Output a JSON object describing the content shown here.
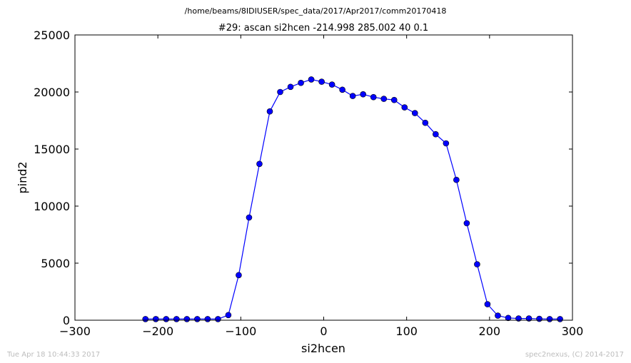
{
  "chart_data": {
    "type": "line",
    "suptitle": "/home/beams/8IDIUSER/spec_data/2017/Apr2017/comm20170418",
    "title": "#29: ascan  si2hcen -214.998 285.002  40 0.1",
    "xlabel": "si2hcen",
    "ylabel": "pind2",
    "xlim": [
      -300,
      300
    ],
    "ylim": [
      0,
      25000
    ],
    "xticks": [
      -300,
      -200,
      -100,
      0,
      100,
      200,
      300
    ],
    "yticks": [
      0,
      5000,
      10000,
      15000,
      20000,
      25000
    ],
    "grid": false,
    "legend": "none",
    "series": [
      {
        "color": "#0000ff",
        "marker": "circle",
        "x": [
          -214.998,
          -202.498,
          -189.998,
          -177.498,
          -164.998,
          -152.498,
          -139.998,
          -127.498,
          -114.998,
          -102.498,
          -89.998,
          -77.498,
          -64.998,
          -52.498,
          -39.998,
          -27.498,
          -14.998,
          -2.498,
          10.002,
          22.502,
          35.002,
          47.502,
          60.002,
          72.502,
          85.002,
          97.502,
          110.002,
          122.502,
          135.002,
          147.502,
          160.002,
          172.502,
          185.002,
          197.502,
          210.002,
          222.502,
          235.002,
          247.502,
          260.002,
          272.502,
          285.002
        ],
        "y": [
          100,
          100,
          100,
          100,
          100,
          100,
          100,
          100,
          450,
          3950,
          9000,
          13700,
          18300,
          20000,
          20450,
          20800,
          21100,
          20900,
          20650,
          20200,
          19650,
          19800,
          19550,
          19400,
          19300,
          18650,
          18150,
          17300,
          16300,
          15500,
          12300,
          8500,
          4900,
          1400,
          400,
          200,
          150,
          150,
          120,
          100,
          100
        ]
      }
    ]
  },
  "footer": {
    "timestamp": "Tue Apr 18 10:44:33 2017",
    "credit": "spec2nexus, (C) 2014-2017"
  }
}
